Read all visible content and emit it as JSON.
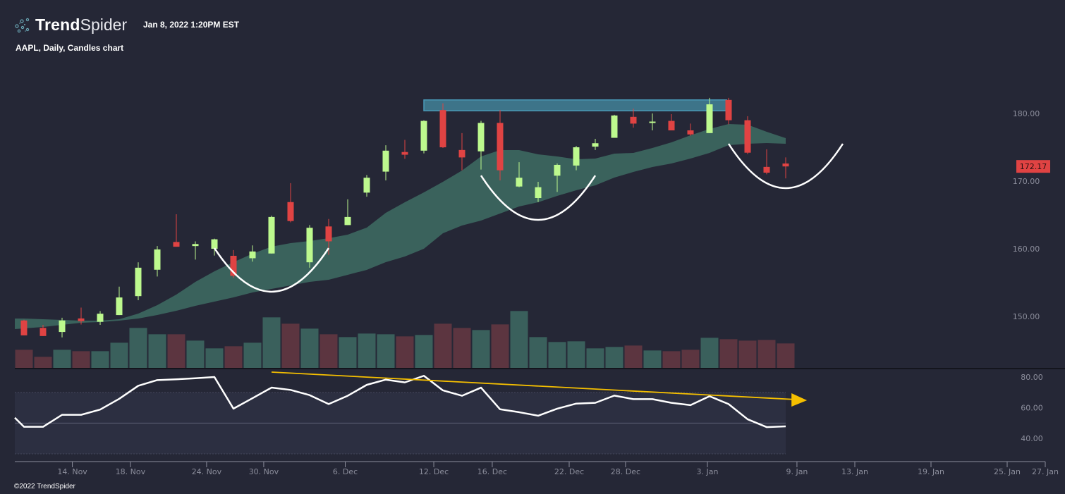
{
  "header": {
    "brand_bold": "Trend",
    "brand_light": "Spider",
    "timestamp": "Jan 8, 2022 1:20PM EST",
    "subtitle": "AAPL, Daily, Candles chart",
    "copyright": "©2022 TrendSpider"
  },
  "colors": {
    "background": "#252736",
    "up": "#bdf98e",
    "down": "#e04343",
    "volume_up": "#3a605c",
    "volume_down": "#5c3540",
    "cloud": "#3a625c",
    "zone": "#3d7489",
    "zone_border": "#4a9ab8",
    "trendline": "#f5bf00",
    "rsi": "#ffffff",
    "rsi_panel": "#2c2f41",
    "last_price_bg": "#e04343"
  },
  "chart_data": {
    "type": "candlestick",
    "symbol": "AAPL",
    "interval": "Daily",
    "price_axis": {
      "ylim": [
        147,
        182.5
      ],
      "ticks": [
        "180.00",
        "170.00",
        "160.00",
        "150.00"
      ],
      "tick_values": [
        180,
        170,
        160,
        150
      ]
    },
    "last_price": "172.17",
    "candles": [
      {
        "o": 149.4,
        "h": 149.5,
        "l": 147.2,
        "c": 147.2
      },
      {
        "o": 148.3,
        "h": 148.75,
        "l": 147.1,
        "c": 147.1
      },
      {
        "o": 147.7,
        "h": 149.8,
        "l": 146.9,
        "c": 149.4
      },
      {
        "o": 149.7,
        "h": 151.3,
        "l": 148.8,
        "c": 149.3
      },
      {
        "o": 149.2,
        "h": 150.8,
        "l": 148.75,
        "c": 150.4
      },
      {
        "o": 150.2,
        "h": 154.4,
        "l": 150.2,
        "c": 152.8
      },
      {
        "o": 153.0,
        "h": 158.0,
        "l": 152.4,
        "c": 157.2
      },
      {
        "o": 156.9,
        "h": 160.4,
        "l": 155.9,
        "c": 159.9
      },
      {
        "o": 161.0,
        "h": 165.1,
        "l": 160.3,
        "c": 160.3
      },
      {
        "o": 160.4,
        "h": 161.1,
        "l": 158.4,
        "c": 160.7
      },
      {
        "o": 160.0,
        "h": 161.5,
        "l": 159.0,
        "c": 161.4
      },
      {
        "o": 158.96,
        "h": 159.8,
        "l": 155.7,
        "c": 156.0
      },
      {
        "o": 158.6,
        "h": 160.5,
        "l": 158.1,
        "c": 159.6
      },
      {
        "o": 159.3,
        "h": 164.9,
        "l": 159.3,
        "c": 164.7
      },
      {
        "o": 166.9,
        "h": 169.7,
        "l": 163.9,
        "c": 164.1
      },
      {
        "o": 158.0,
        "h": 163.5,
        "l": 157.2,
        "c": 163.1
      },
      {
        "o": 163.3,
        "h": 164.4,
        "l": 159.1,
        "c": 161.1
      },
      {
        "o": 163.5,
        "h": 167.3,
        "l": 163.5,
        "c": 164.7
      },
      {
        "o": 168.3,
        "h": 170.9,
        "l": 167.7,
        "c": 170.5
      },
      {
        "o": 171.4,
        "h": 175.3,
        "l": 170.1,
        "c": 174.5
      },
      {
        "o": 174.3,
        "h": 176.1,
        "l": 173.3,
        "c": 173.9
      },
      {
        "o": 174.5,
        "h": 179.0,
        "l": 174.1,
        "c": 178.9
      },
      {
        "o": 180.5,
        "h": 181.5,
        "l": 174.9,
        "c": 175.0
      },
      {
        "o": 174.6,
        "h": 177.1,
        "l": 171.6,
        "c": 173.5
      },
      {
        "o": 174.4,
        "h": 178.9,
        "l": 171.7,
        "c": 178.6
      },
      {
        "o": 178.6,
        "h": 180.5,
        "l": 170.1,
        "c": 171.6
      },
      {
        "o": 169.2,
        "h": 172.8,
        "l": 169.1,
        "c": 170.5
      },
      {
        "o": 167.5,
        "h": 169.9,
        "l": 166.9,
        "c": 169.1
      },
      {
        "o": 170.8,
        "h": 172.6,
        "l": 168.4,
        "c": 172.4
      },
      {
        "o": 172.3,
        "h": 175.2,
        "l": 171.6,
        "c": 175.0
      },
      {
        "o": 175.1,
        "h": 176.25,
        "l": 174.6,
        "c": 175.6
      },
      {
        "o": 176.4,
        "h": 179.8,
        "l": 176.4,
        "c": 179.7
      },
      {
        "o": 179.5,
        "h": 180.7,
        "l": 177.9,
        "c": 178.5
      },
      {
        "o": 178.7,
        "h": 180.0,
        "l": 177.5,
        "c": 178.8
      },
      {
        "o": 178.9,
        "h": 179.9,
        "l": 177.5,
        "c": 177.5
      },
      {
        "o": 177.5,
        "h": 178.5,
        "l": 176.7,
        "c": 176.9
      },
      {
        "o": 177.1,
        "h": 182.3,
        "l": 177.1,
        "c": 181.35
      },
      {
        "o": 182.0,
        "h": 182.3,
        "l": 178.4,
        "c": 179.0
      },
      {
        "o": 179.0,
        "h": 179.6,
        "l": 174.0,
        "c": 174.2
      },
      {
        "o": 172.1,
        "h": 174.7,
        "l": 171.0,
        "c": 171.25
      },
      {
        "o": 172.6,
        "h": 173.5,
        "l": 170.4,
        "c": 172.17
      }
    ],
    "volume_relative": [
      77,
      47,
      77,
      71,
      71,
      107,
      170,
      143,
      143,
      116,
      83,
      92,
      107,
      215,
      188,
      167,
      143,
      131,
      146,
      143,
      134,
      140,
      188,
      170,
      161,
      185,
      242,
      131,
      110,
      113,
      83,
      89,
      95,
      74,
      71,
      77,
      128,
      122,
      116,
      119,
      104
    ],
    "cloud": {
      "upper": [
        149.69,
        149.58,
        149.48,
        149.38,
        149.38,
        149.58,
        150.42,
        151.67,
        153.23,
        155.1,
        156.67,
        158.02,
        159.27,
        160.31,
        160.83,
        161.15,
        161.56,
        162.08,
        163.13,
        165.31,
        166.88,
        168.33,
        169.9,
        171.56,
        173.65,
        174.58,
        174.58,
        173.96,
        173.65,
        173.23,
        173.33,
        174.06,
        174.17,
        174.9,
        175.73,
        176.77,
        177.71,
        178.44,
        178.33,
        177.29,
        176.35
      ],
      "lower": [
        148.23,
        148.44,
        148.75,
        149.06,
        149.17,
        149.38,
        149.69,
        150.21,
        150.83,
        151.56,
        152.19,
        152.81,
        153.54,
        154.06,
        154.58,
        155.1,
        155.42,
        156.15,
        156.88,
        158.02,
        158.85,
        160.0,
        162.29,
        163.44,
        164.17,
        165.21,
        166.25,
        166.88,
        167.81,
        168.65,
        169.38,
        170.52,
        171.35,
        172.08,
        172.6,
        173.33,
        174.17,
        175.31,
        175.52,
        175.63,
        175.52
      ]
    },
    "rsi": {
      "prev": 53.5,
      "values": [
        47.6,
        47.6,
        55.4,
        55.4,
        58.8,
        65.8,
        74.3,
        78.0,
        78.5,
        79.2,
        80.0,
        59.4,
        66.2,
        73.1,
        71.6,
        68.2,
        62.4,
        67.8,
        74.9,
        78.3,
        76.5,
        80.8,
        71.3,
        67.8,
        73.1,
        59.0,
        57.1,
        54.8,
        59.4,
        62.7,
        63.2,
        67.9,
        65.6,
        65.6,
        63.2,
        61.7,
        67.5,
        62.4,
        52.5,
        47.4,
        47.9
      ],
      "ticks": [
        "80.00",
        "60.00",
        "40.00"
      ],
      "tick_values": [
        80,
        60,
        40
      ],
      "bands": [
        70,
        50,
        30
      ]
    },
    "x_ticks": [
      {
        "label": "14. Nov",
        "index": 2.54
      },
      {
        "label": "18. Nov",
        "index": 5.59
      },
      {
        "label": "24. Nov",
        "index": 9.59
      },
      {
        "label": "30. Nov",
        "index": 12.59
      },
      {
        "label": "6. Dec",
        "index": 16.87
      },
      {
        "label": "12. Dec",
        "index": 21.52
      },
      {
        "label": "16. Dec",
        "index": 24.59
      },
      {
        "label": "22. Dec",
        "index": 28.63
      },
      {
        "label": "28. Dec",
        "index": 31.59
      },
      {
        "label": "3. Jan",
        "index": 35.89
      },
      {
        "label": "9. Jan",
        "index": 40.59
      },
      {
        "label": "13. Jan",
        "index": 43.63
      },
      {
        "label": "19. Jan",
        "index": 47.63
      },
      {
        "label": "25. Jan",
        "index": 51.63
      },
      {
        "label": "27. Jan",
        "index": 53.63
      }
    ],
    "annotations": {
      "resistance_zone": {
        "from_index": 21,
        "to_index": 36.9,
        "price_top": 182.0,
        "price_bottom": 180.4
      },
      "arcs": [
        {
          "from_index": 10,
          "to_index": 16,
          "top_price": 160.1,
          "bottom_price": 153.65
        },
        {
          "from_index": 24,
          "to_index": 30,
          "top_price": 170.83,
          "bottom_price": 164.27
        },
        {
          "from_index": 37,
          "to_index": 43,
          "top_price": 175.52,
          "bottom_price": 168.96
        }
      ],
      "rsi_trendline": {
        "from_index": 13,
        "from_rsi": 83.2,
        "to_index": 40.6,
        "to_rsi": 65.3
      }
    }
  }
}
